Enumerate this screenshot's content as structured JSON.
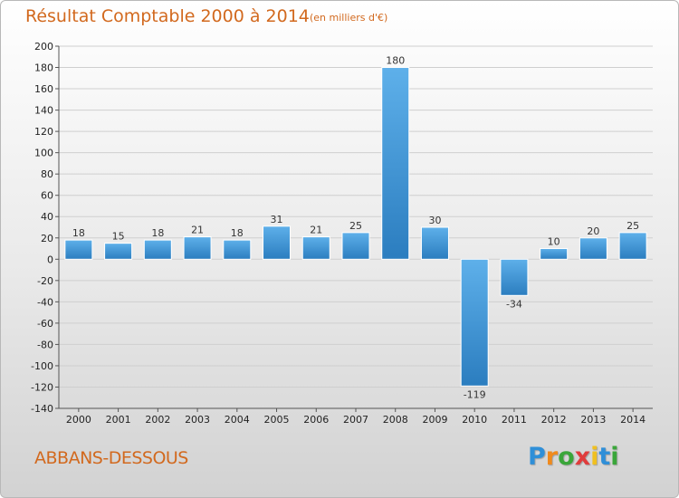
{
  "chart_data": {
    "type": "bar",
    "title": "Résultat Comptable 2000 à 2014",
    "subtitle": "(en milliers d'€)",
    "categories": [
      "2000",
      "2001",
      "2002",
      "2003",
      "2004",
      "2005",
      "2006",
      "2007",
      "2008",
      "2009",
      "2010",
      "2011",
      "2012",
      "2013",
      "2014"
    ],
    "values": [
      18,
      15,
      18,
      21,
      18,
      31,
      21,
      25,
      180,
      30,
      -119,
      -34,
      10,
      20,
      25
    ],
    "data_labels": [
      "18",
      "15",
      "18",
      "21",
      "18",
      "31",
      "21",
      "25",
      "180",
      "30",
      "-119",
      "-34",
      "10",
      "20",
      "25"
    ],
    "ylim": [
      -140,
      200
    ],
    "yticks": [
      200,
      180,
      160,
      140,
      120,
      100,
      80,
      60,
      40,
      20,
      0,
      -20,
      -40,
      -60,
      -80,
      -100,
      -120,
      -140
    ],
    "grid": true,
    "colors": {
      "bar_light": "#5eb0ea",
      "bar_dark": "#2b7dbf",
      "grid": "#cfcfcf",
      "axis": "#555555",
      "title": "#d2691e"
    }
  },
  "place": "ABBANS-DESSOUS",
  "brand": {
    "text": "Proxiti",
    "letters": [
      "P",
      "r",
      "o",
      "x",
      "i",
      "t",
      "i"
    ],
    "colors": [
      "#2f8fd8",
      "#f08a1c",
      "#3aa63a",
      "#e03c3c",
      "#f0c020",
      "#2f8fd8",
      "#3aa63a"
    ]
  }
}
